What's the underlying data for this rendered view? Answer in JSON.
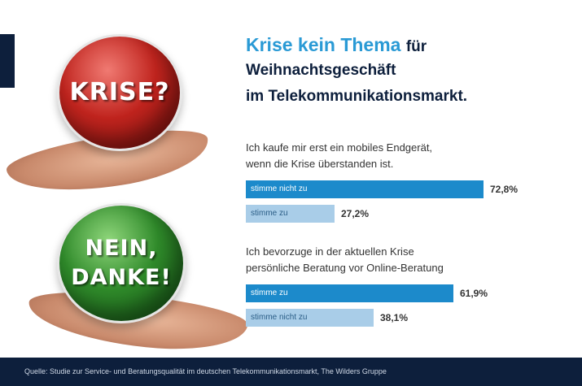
{
  "balls": {
    "red_text": "KRISE?",
    "green_text_1": "NEIN,",
    "green_text_2": "DANKE!"
  },
  "title": {
    "highlight": "Krise kein Thema",
    "rest": "für",
    "line2": "Weihnachtsgeschäft",
    "line3": "im Telekommunikationsmarkt."
  },
  "footer": {
    "source": "Quelle: Studie zur Service- und Beratungsqualität im deutschen Telekommunikationsmarkt, The Wilders Gruppe"
  },
  "colors": {
    "dark_bar": "#1c8acb",
    "light_bar": "#a9cde8",
    "accent": "#2a9ad5",
    "navy": "#0d1f3c"
  },
  "chart_data": [
    {
      "type": "bar",
      "question_line1": "Ich kaufe mir erst ein mobiles Endgerät,",
      "question_line2": "wenn die Krise überstanden ist.",
      "categories": [
        "stimme nicht zu",
        "stimme zu"
      ],
      "values": [
        72.8,
        27.2
      ],
      "labels": [
        "72,8%",
        "27,2%"
      ],
      "unit": "%"
    },
    {
      "type": "bar",
      "question_line1": "Ich bevorzuge in der aktuellen Krise",
      "question_line2": "persönliche Beratung vor Online-Beratung",
      "categories": [
        "stimme zu",
        "stimme nicht zu"
      ],
      "values": [
        61.9,
        38.1
      ],
      "labels": [
        "61,9%",
        "38,1%"
      ],
      "unit": "%"
    }
  ]
}
